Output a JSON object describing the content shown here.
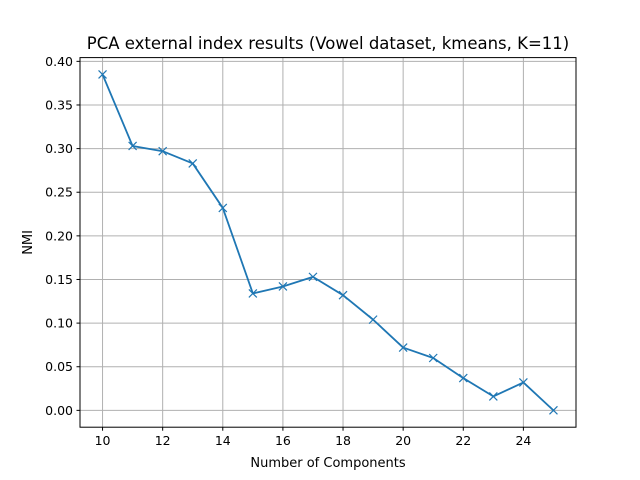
{
  "chart_data": {
    "type": "line",
    "title": "PCA external index results (Vowel dataset, kmeans, K=11)",
    "xlabel": "Number of Components",
    "ylabel": "NMI",
    "xlim": [
      9.25,
      25.75
    ],
    "ylim": [
      -0.0193,
      0.4043
    ],
    "xticks": [
      10,
      12,
      14,
      16,
      18,
      20,
      22,
      24
    ],
    "xtick_labels": [
      "10",
      "12",
      "14",
      "16",
      "18",
      "20",
      "22",
      "24"
    ],
    "yticks": [
      0.0,
      0.05,
      0.1,
      0.15,
      0.2,
      0.25,
      0.3,
      0.35,
      0.4
    ],
    "ytick_labels": [
      "0.00",
      "0.05",
      "0.10",
      "0.15",
      "0.20",
      "0.25",
      "0.30",
      "0.35",
      "0.40"
    ],
    "grid": true,
    "marker": "x",
    "series": [
      {
        "color": "#1f77b4",
        "x": [
          10,
          11,
          12,
          13,
          14,
          15,
          16,
          17,
          18,
          19,
          20,
          21,
          22,
          23,
          24,
          25
        ],
        "y": [
          0.385,
          0.303,
          0.297,
          0.283,
          0.232,
          0.134,
          0.142,
          0.153,
          0.132,
          0.104,
          0.072,
          0.06,
          0.037,
          0.016,
          0.032,
          0.0
        ]
      }
    ]
  }
}
